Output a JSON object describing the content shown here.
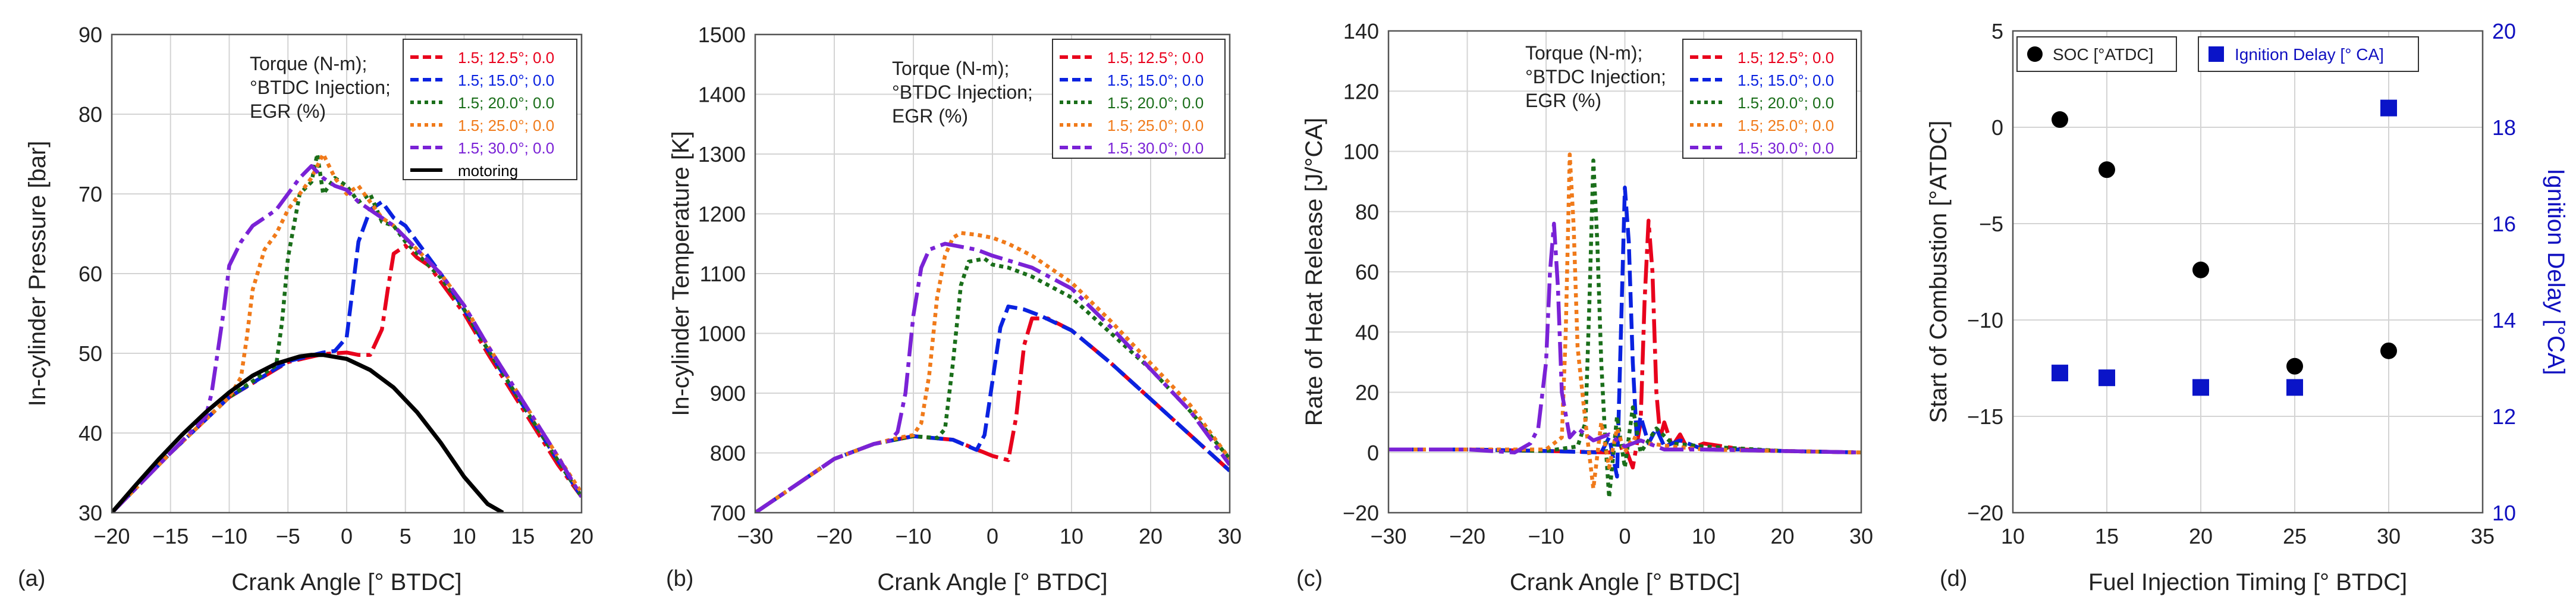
{
  "chart_data": [
    {
      "type": "line",
      "panel_label": "(a)",
      "xlabel": "Crank Angle [° BTDC]",
      "ylabel": "In-cylinder Pressure [bar]",
      "xlim": [
        -20,
        20
      ],
      "ylim": [
        30,
        90
      ],
      "xticks": [
        -20,
        -15,
        -10,
        -5,
        0,
        5,
        10,
        15,
        20
      ],
      "xtick_labels": [
        "−20",
        "−15",
        "−10",
        "−5",
        "0",
        "5",
        "10",
        "15",
        "20"
      ],
      "yticks": [
        30,
        40,
        50,
        60,
        70,
        80,
        90
      ],
      "ytick_labels": [
        "30",
        "40",
        "50",
        "60",
        "70",
        "80",
        "90"
      ],
      "grid": true,
      "annotation": [
        "Torque (N-m);",
        "°BTDC Injection;",
        "EGR (%)"
      ],
      "legend_position": "top-right",
      "series": [
        {
          "name": "1.5; 12.5°; 0.0",
          "color": "#e8001c",
          "dash": "long-dash",
          "x": [
            -20,
            -15,
            -10,
            -5,
            -2,
            0,
            1,
            2,
            3,
            3.5,
            4,
            5,
            6,
            7,
            8,
            10,
            12,
            15,
            18,
            20
          ],
          "y": [
            30,
            37.5,
            44.5,
            48.9,
            49.9,
            50.1,
            49.8,
            49.8,
            53,
            58,
            62.5,
            63.5,
            62,
            61,
            59,
            55,
            50,
            43,
            36,
            32
          ]
        },
        {
          "name": "1.5; 15.0°; 0.0",
          "color": "#0a22e0",
          "dash": "dash",
          "x": [
            -20,
            -15,
            -10,
            -5,
            -2,
            -1,
            0,
            0.5,
            1,
            2,
            3,
            4,
            5,
            6,
            8,
            10,
            12,
            15,
            18,
            20
          ],
          "y": [
            30,
            37.5,
            44.5,
            49,
            50.1,
            50.3,
            52,
            58,
            64,
            68,
            69,
            67,
            66,
            64,
            60,
            55.5,
            50.5,
            43.5,
            36.5,
            32
          ]
        },
        {
          "name": "1.5; 20.0°; 0.0",
          "color": "#1a6e1a",
          "dash": "dot",
          "x": [
            -20,
            -15,
            -10,
            -6,
            -5.5,
            -5,
            -4,
            -3,
            -2.5,
            -2,
            -1,
            0,
            1,
            2,
            3,
            4,
            5,
            6,
            8,
            10,
            12,
            15,
            18,
            20
          ],
          "y": [
            30,
            37.5,
            44.5,
            48.5,
            54,
            62,
            70,
            71.5,
            75,
            70,
            72,
            71,
            69,
            70,
            66.5,
            66,
            64,
            62.5,
            59.5,
            55.5,
            50.5,
            43.5,
            36.5,
            32
          ]
        },
        {
          "name": "1.5; 25.0°; 0.0",
          "color": "#f07a1a",
          "dash": "dot",
          "x": [
            -20,
            -15,
            -10,
            -9,
            -8.5,
            -8,
            -7,
            -6,
            -5,
            -4,
            -3,
            -2,
            -1,
            0,
            1,
            2,
            3,
            4,
            5,
            6,
            8,
            10,
            12,
            15,
            18,
            20
          ],
          "y": [
            30,
            37.5,
            44.5,
            47,
            52,
            58,
            63,
            65,
            68,
            70,
            72,
            75,
            72,
            70,
            71,
            69,
            67,
            66,
            64.5,
            63,
            60,
            56,
            51,
            44,
            37,
            32.5
          ]
        },
        {
          "name": "1.5; 30.0°; 0.0",
          "color": "#7a22d6",
          "dash": "long-dash",
          "x": [
            -20,
            -15,
            -12,
            -11.5,
            -11,
            -10.5,
            -10,
            -9,
            -8,
            -7,
            -6,
            -5,
            -4,
            -3,
            -2,
            -1,
            0,
            1,
            2,
            3,
            4,
            5,
            6,
            8,
            10,
            12,
            15,
            18,
            20
          ],
          "y": [
            30,
            37.5,
            42,
            45,
            50,
            55,
            61,
            64,
            66,
            67,
            68,
            70,
            72,
            73.5,
            72,
            71,
            70.5,
            69,
            68,
            67,
            66,
            64.5,
            63,
            60,
            56,
            51,
            44,
            37,
            32
          ]
        },
        {
          "name": "motoring",
          "color": "#000000",
          "dash": "solid",
          "x": [
            -20,
            -18,
            -16,
            -14,
            -12,
            -10,
            -8,
            -6,
            -4,
            -3,
            -2,
            0,
            2,
            4,
            6,
            8,
            10,
            12,
            13.3
          ],
          "y": [
            30,
            33.4,
            36.7,
            39.8,
            42.6,
            45.1,
            47.2,
            48.7,
            49.6,
            49.8,
            49.8,
            49.3,
            47.9,
            45.7,
            42.6,
            38.8,
            34.5,
            31.1,
            30
          ]
        }
      ]
    },
    {
      "type": "line",
      "panel_label": "(b)",
      "xlabel": "Crank Angle [° BTDC]",
      "ylabel": "In-cylinder Temperature [K]",
      "xlim": [
        -30,
        30
      ],
      "ylim": [
        700,
        1500
      ],
      "xticks": [
        -30,
        -20,
        -10,
        0,
        10,
        20,
        30
      ],
      "xtick_labels": [
        "−30",
        "−20",
        "−10",
        "0",
        "10",
        "20",
        "30"
      ],
      "yticks": [
        700,
        800,
        900,
        1000,
        1100,
        1200,
        1300,
        1400,
        1500
      ],
      "ytick_labels": [
        "700",
        "800",
        "900",
        "1000",
        "1100",
        "1200",
        "1300",
        "1400",
        "1500"
      ],
      "grid": true,
      "annotation": [
        "Torque (N-m);",
        "°BTDC Injection;",
        "EGR (%)"
      ],
      "legend_position": "top-right",
      "series": [
        {
          "name": "1.5; 12.5°; 0.0",
          "color": "#e8001c",
          "dash": "long-dash",
          "x": [
            -30,
            -25,
            -20,
            -15,
            -10,
            -5,
            0,
            2,
            3,
            4,
            5,
            7,
            10,
            15,
            20,
            25,
            30
          ],
          "y": [
            700,
            745,
            790,
            815,
            828,
            822,
            795,
            788,
            860,
            980,
            1025,
            1025,
            1005,
            950,
            890,
            830,
            770
          ]
        },
        {
          "name": "1.5; 15.0°; 0.0",
          "color": "#0a22e0",
          "dash": "dash",
          "x": [
            -30,
            -25,
            -20,
            -15,
            -10,
            -5,
            -2,
            -1,
            0,
            1,
            2,
            4,
            6,
            10,
            15,
            20,
            25,
            30
          ],
          "y": [
            700,
            745,
            790,
            815,
            828,
            822,
            805,
            830,
            920,
            1010,
            1045,
            1040,
            1030,
            1005,
            950,
            890,
            830,
            770
          ]
        },
        {
          "name": "1.5; 20.0°; 0.0",
          "color": "#1a6e1a",
          "dash": "dot",
          "x": [
            -30,
            -25,
            -20,
            -15,
            -10,
            -7,
            -6,
            -5,
            -4,
            -3,
            -1,
            0,
            2,
            5,
            10,
            15,
            20,
            25,
            30
          ],
          "y": [
            700,
            745,
            790,
            815,
            828,
            825,
            840,
            950,
            1080,
            1120,
            1125,
            1115,
            1110,
            1095,
            1060,
            1000,
            940,
            870,
            790
          ]
        },
        {
          "name": "1.5; 25.0°; 0.0",
          "color": "#f07a1a",
          "dash": "dot",
          "x": [
            -30,
            -25,
            -20,
            -15,
            -12,
            -10,
            -9,
            -8,
            -7,
            -6,
            -5,
            -4,
            -2,
            0,
            2,
            5,
            10,
            15,
            20,
            25,
            30
          ],
          "y": [
            700,
            745,
            790,
            815,
            825,
            830,
            850,
            930,
            1060,
            1130,
            1160,
            1168,
            1165,
            1160,
            1150,
            1130,
            1085,
            1020,
            950,
            880,
            790
          ]
        },
        {
          "name": "1.5; 30.0°; 0.0",
          "color": "#7a22d6",
          "dash": "long-dash",
          "x": [
            -30,
            -25,
            -20,
            -15,
            -13,
            -12,
            -11,
            -10,
            -9,
            -8,
            -6,
            -4,
            -2,
            0,
            5,
            10,
            15,
            20,
            25,
            30
          ],
          "y": [
            700,
            745,
            790,
            815,
            820,
            835,
            900,
            1030,
            1110,
            1140,
            1150,
            1145,
            1140,
            1130,
            1110,
            1075,
            1010,
            940,
            870,
            780
          ]
        }
      ]
    },
    {
      "type": "line",
      "panel_label": "(c)",
      "xlabel": "Crank Angle [° BTDC]",
      "ylabel": "Rate of Heat Release [J/°CA]",
      "xlim": [
        -30,
        30
      ],
      "ylim": [
        -20,
        140
      ],
      "xticks": [
        -30,
        -20,
        -10,
        0,
        10,
        20,
        30
      ],
      "xtick_labels": [
        "−30",
        "−20",
        "−10",
        "0",
        "10",
        "20",
        "30"
      ],
      "yticks": [
        -20,
        0,
        20,
        40,
        60,
        80,
        100,
        120,
        140
      ],
      "ytick_labels": [
        "−20",
        "0",
        "20",
        "40",
        "60",
        "80",
        "100",
        "120",
        "140"
      ],
      "grid": true,
      "annotation": [
        "Torque (N-m);",
        "°BTDC Injection;",
        "EGR (%)"
      ],
      "legend_position": "top-right",
      "series": [
        {
          "name": "1.5; 12.5°; 0.0",
          "color": "#e8001c",
          "dash": "long-dash",
          "x": [
            -30,
            -20,
            -10,
            -2,
            0,
            1,
            2,
            2.5,
            3,
            3.5,
            4,
            4.5,
            5,
            6,
            7,
            8,
            10,
            15,
            20,
            30
          ],
          "y": [
            1,
            1,
            0.5,
            0,
            2,
            -5,
            10,
            50,
            77,
            60,
            20,
            5,
            10,
            2,
            6,
            1,
            3,
            1,
            0.5,
            0
          ]
        },
        {
          "name": "1.5; 15.0°; 0.0",
          "color": "#0a22e0",
          "dash": "dash",
          "x": [
            -30,
            -20,
            -10,
            -3,
            -2,
            -1,
            -0.5,
            0,
            0.5,
            1,
            1.5,
            2,
            3,
            4,
            5,
            7,
            10,
            15,
            20,
            30
          ],
          "y": [
            1,
            1,
            0.5,
            0,
            5,
            -8,
            40,
            88,
            70,
            30,
            5,
            12,
            3,
            8,
            2,
            4,
            1,
            1,
            0.5,
            0
          ]
        },
        {
          "name": "1.5; 20.0°; 0.0",
          "color": "#1a6e1a",
          "dash": "dot",
          "x": [
            -30,
            -20,
            -10,
            -6,
            -5,
            -4.5,
            -4,
            -3.5,
            -3,
            -2.5,
            -2,
            -1,
            0,
            1,
            2,
            4,
            6,
            10,
            20,
            30
          ],
          "y": [
            1,
            1,
            0.5,
            2,
            10,
            50,
            97,
            70,
            30,
            5,
            -15,
            12,
            -5,
            15,
            0,
            8,
            3,
            2,
            0.5,
            0
          ]
        },
        {
          "name": "1.5; 25.0°; 0.0",
          "color": "#f07a1a",
          "dash": "dot",
          "x": [
            -30,
            -20,
            -10,
            -8,
            -7.5,
            -7,
            -6.5,
            -6,
            -5,
            -4,
            -3,
            -2,
            -1,
            0,
            1,
            3,
            6,
            10,
            20,
            30
          ],
          "y": [
            1,
            1,
            1,
            5,
            40,
            99,
            75,
            35,
            10,
            -12,
            10,
            -5,
            8,
            0,
            5,
            3,
            2,
            1,
            0.5,
            0
          ]
        },
        {
          "name": "1.5; 30.0°; 0.0",
          "color": "#7a22d6",
          "dash": "long-dash",
          "x": [
            -30,
            -20,
            -14,
            -12,
            -11,
            -10,
            -9.5,
            -9,
            -8.5,
            -8,
            -7,
            -6,
            -4,
            -2,
            0,
            2,
            5,
            10,
            20,
            30
          ],
          "y": [
            1,
            1,
            0,
            3,
            8,
            30,
            60,
            76,
            55,
            20,
            5,
            8,
            4,
            6,
            2,
            4,
            1,
            1,
            0.5,
            0
          ]
        }
      ]
    },
    {
      "type": "scatter",
      "panel_label": "(d)",
      "xlabel": "Fuel Injection Timing [° BTDC]",
      "ylabel": "Start of Combustion [°ATDC]",
      "y2label": "Ignition Delay [°CA]",
      "xlim": [
        10,
        35
      ],
      "ylim": [
        -20,
        5
      ],
      "y2lim": [
        10,
        20
      ],
      "xticks": [
        10,
        15,
        20,
        25,
        30,
        35
      ],
      "xtick_labels": [
        "10",
        "15",
        "20",
        "25",
        "30",
        "35"
      ],
      "yticks": [
        -20,
        -15,
        -10,
        -5,
        0,
        5
      ],
      "ytick_labels": [
        "−20",
        "−15",
        "−10",
        "−5",
        "0",
        "5"
      ],
      "y2ticks": [
        10,
        12,
        14,
        16,
        18,
        20
      ],
      "y2tick_labels": [
        "10",
        "12",
        "14",
        "16",
        "18",
        "20"
      ],
      "grid": true,
      "legend_position": "top",
      "series": [
        {
          "name": "SOC [°ATDC]",
          "color": "#000000",
          "marker": "circle",
          "axis": "left",
          "x": [
            12.5,
            15,
            20,
            25,
            30
          ],
          "y": [
            0.4,
            -2.2,
            -7.4,
            -12.4,
            -11.6
          ]
        },
        {
          "name": "Ignition Delay [° CA]",
          "color": "#0a14c8",
          "marker": "square",
          "axis": "right",
          "x": [
            12.5,
            15,
            20,
            25,
            30
          ],
          "y": [
            12.9,
            12.8,
            12.6,
            12.6,
            18.4
          ]
        }
      ]
    }
  ]
}
